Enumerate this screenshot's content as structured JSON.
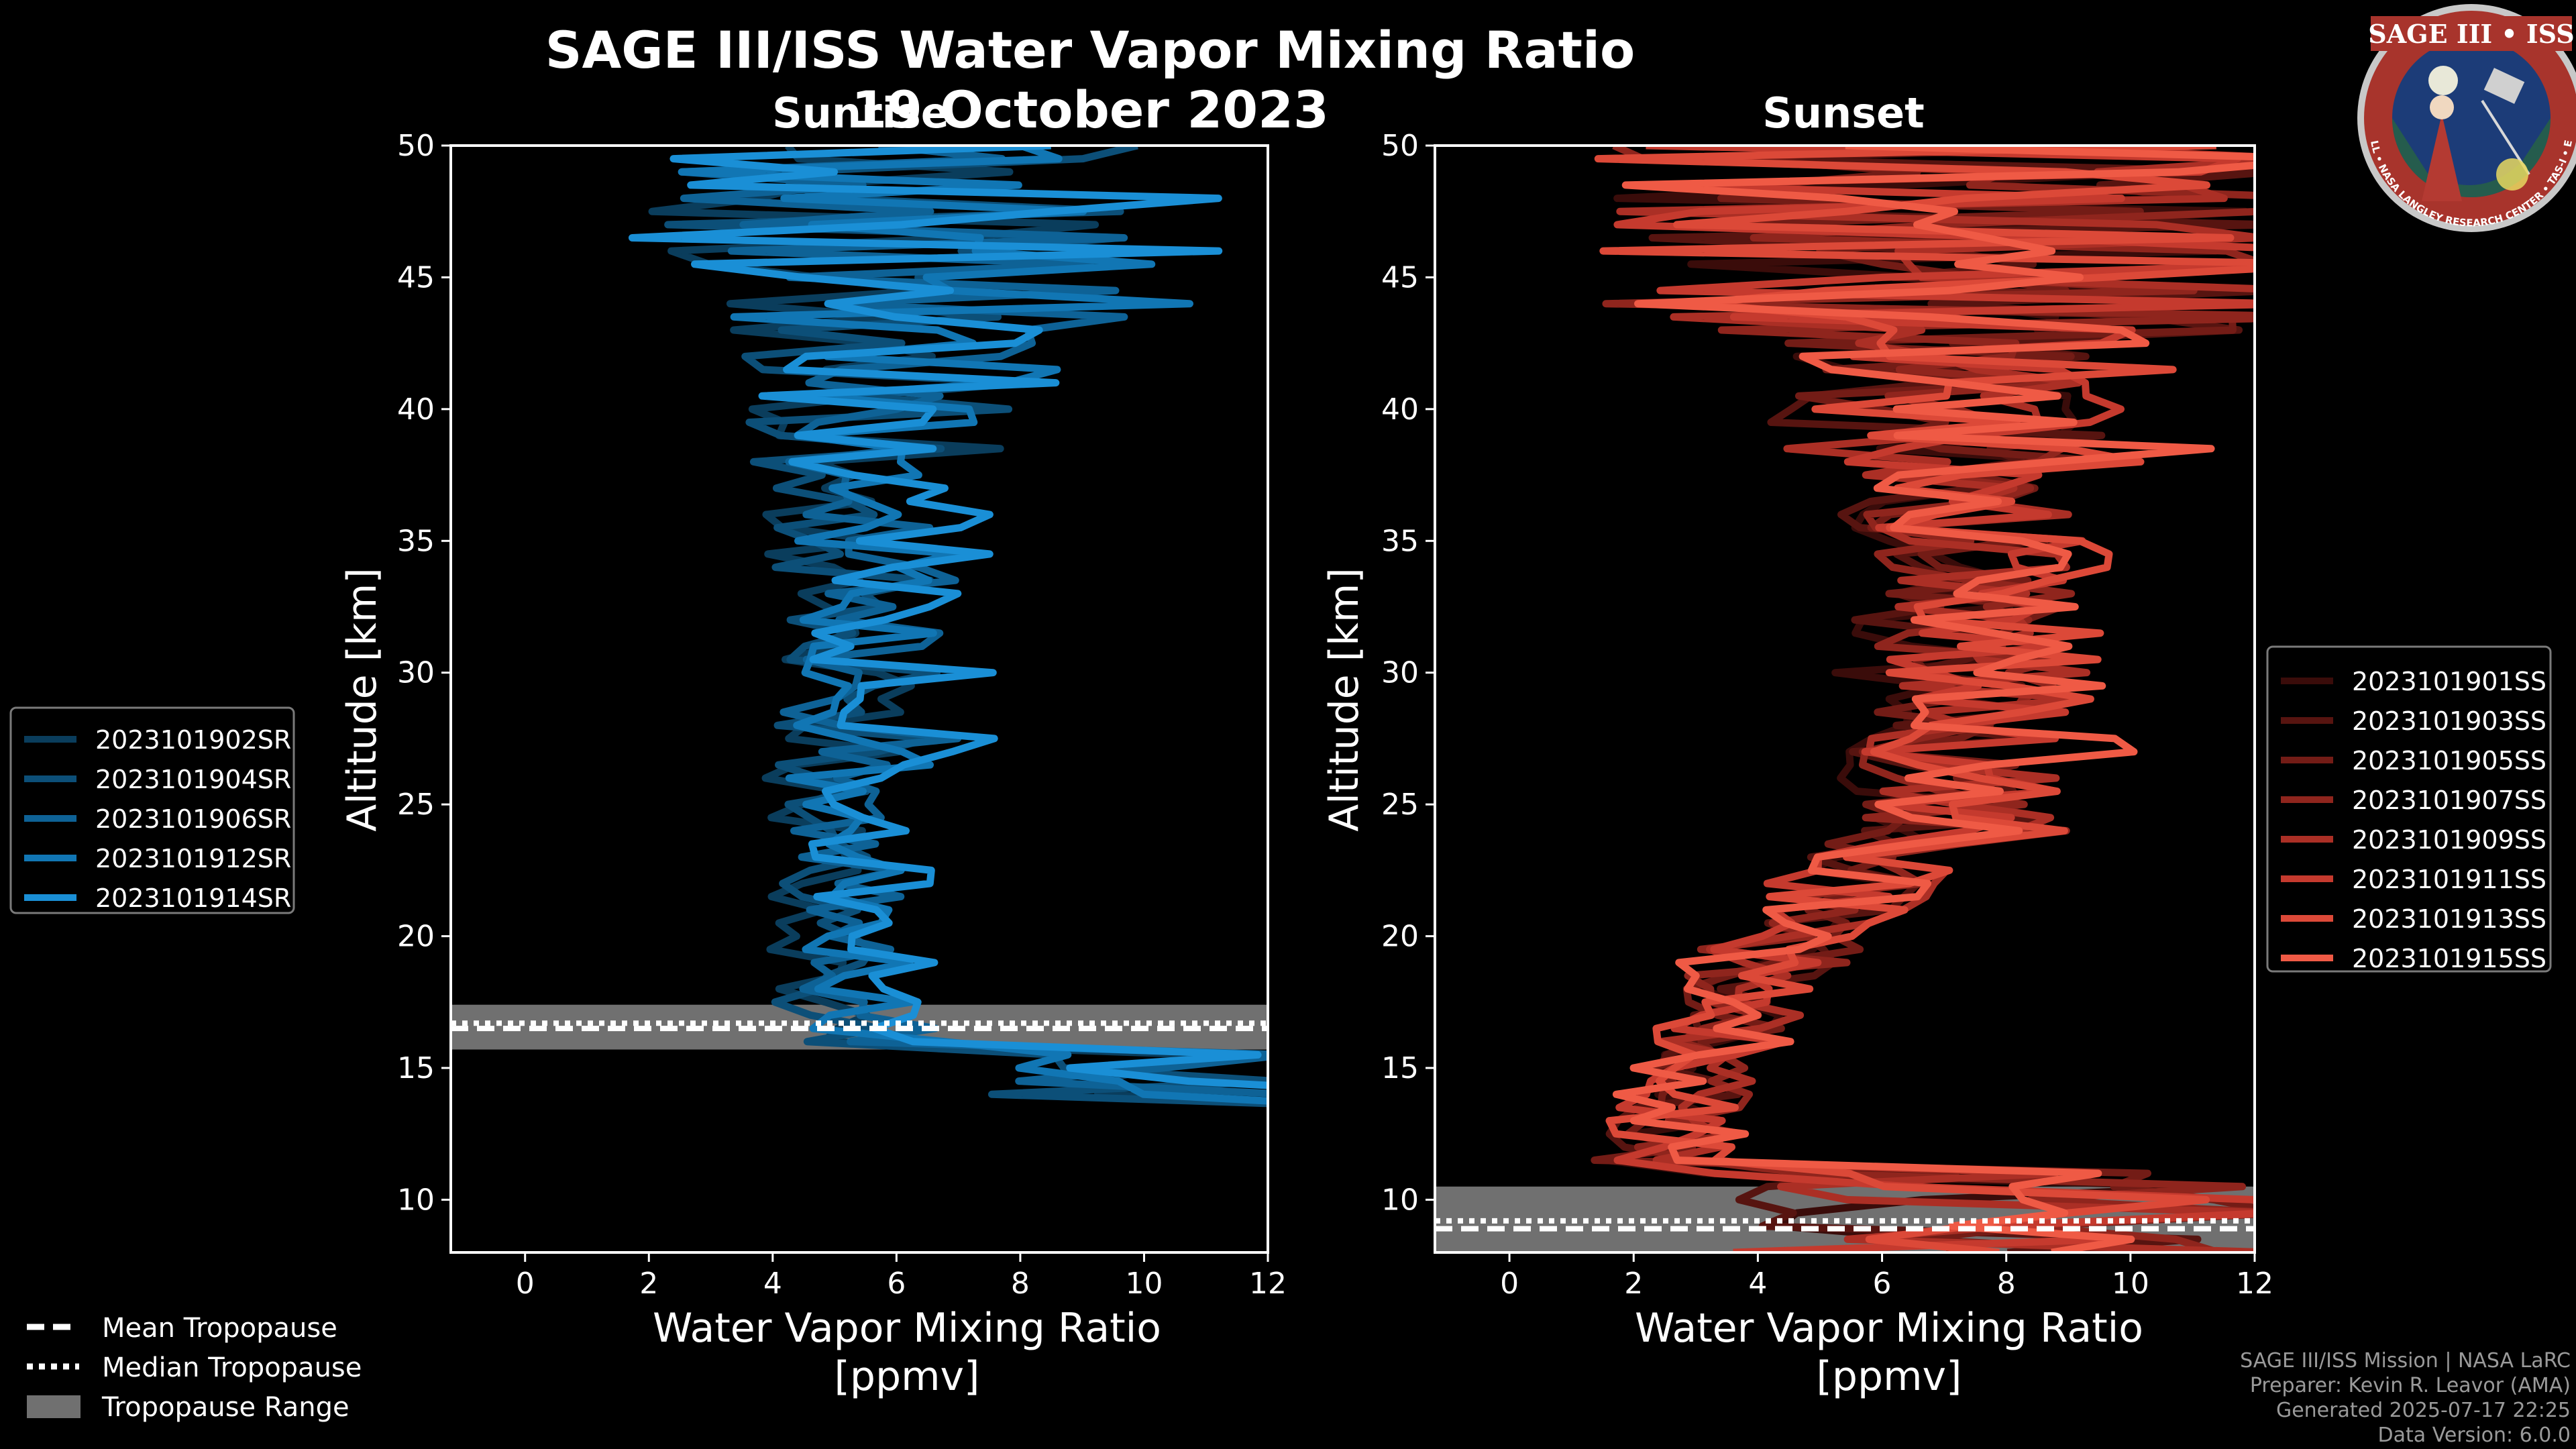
{
  "figure": {
    "title": "SAGE III/ISS Water Vapor Mixing Ratio",
    "date": "19 October 2023",
    "footer": [
      "SAGE III/ISS Mission | NASA LaRC",
      "Preparer: Kevin R. Leavor (AMA)",
      "Generated 2025-07-17 22:25",
      "Data Version: 6.0.0"
    ],
    "logo": {
      "title": "SAGE III • ISS",
      "ring_text": "BALL • NASA LANGLEY RESEARCH CENTER • TAS-I • ESA"
    }
  },
  "tropopause_legend": {
    "mean": "Mean Tropopause",
    "median": "Median Tropopause",
    "range": "Tropopause Range"
  },
  "colors": {
    "sunrise": [
      "#0a3d5c",
      "#0c4f78",
      "#0e6296",
      "#1176b4",
      "#1a8fd6"
    ],
    "sunset": [
      "#3a0c0a",
      "#571410",
      "#731c16",
      "#8f251d",
      "#ab2f25",
      "#c53a2e",
      "#dc4938",
      "#ef5a45"
    ],
    "trop_range": "#707070"
  },
  "chart_data": [
    {
      "type": "line",
      "panel_title": "Sunrise",
      "xlabel": "Water Vapor Mixing Ratio\n[ppmv]",
      "ylabel": "Altitude [km]",
      "xlim": [
        -1.2,
        12
      ],
      "ylim": [
        8,
        50
      ],
      "xticks": [
        0,
        2,
        4,
        6,
        8,
        10,
        12
      ],
      "yticks": [
        10,
        15,
        20,
        25,
        30,
        35,
        40,
        45,
        50
      ],
      "tropopause": {
        "mean": 16.5,
        "median": 16.7,
        "range": [
          15.7,
          17.4
        ]
      },
      "series": [
        {
          "name": "2023101902SR",
          "seed": 11,
          "center": 5.1,
          "width": 1.0
        },
        {
          "name": "2023101904SR",
          "seed": 23,
          "center": 5.3,
          "width": 1.1
        },
        {
          "name": "2023101906SR",
          "seed": 37,
          "center": 5.6,
          "width": 1.1
        },
        {
          "name": "2023101912SR",
          "seed": 53,
          "center": 5.8,
          "width": 1.2
        },
        {
          "name": "2023101914SR",
          "seed": 71,
          "center": 6.0,
          "width": 1.3
        }
      ]
    },
    {
      "type": "line",
      "panel_title": "Sunset",
      "xlabel": "Water Vapor Mixing Ratio\n[ppmv]",
      "ylabel": "Altitude [km]",
      "xlim": [
        -1.2,
        12
      ],
      "ylim": [
        8,
        50
      ],
      "xticks": [
        0,
        2,
        4,
        6,
        8,
        10,
        12
      ],
      "yticks": [
        10,
        15,
        20,
        25,
        30,
        35,
        40,
        45,
        50
      ],
      "tropopause": {
        "mean": 8.9,
        "median": 9.2,
        "range": [
          8,
          10.5
        ]
      },
      "series": [
        {
          "name": "2023101901SS",
          "seed": 101,
          "center": 6.8,
          "width": 1.2
        },
        {
          "name": "2023101903SS",
          "seed": 113,
          "center": 7.0,
          "width": 1.3
        },
        {
          "name": "2023101905SS",
          "seed": 127,
          "center": 7.2,
          "width": 1.3
        },
        {
          "name": "2023101907SS",
          "seed": 139,
          "center": 7.4,
          "width": 1.4
        },
        {
          "name": "2023101909SS",
          "seed": 151,
          "center": 7.5,
          "width": 1.4
        },
        {
          "name": "2023101911SS",
          "seed": 163,
          "center": 7.6,
          "width": 1.5
        },
        {
          "name": "2023101913SS",
          "seed": 179,
          "center": 7.8,
          "width": 1.5
        },
        {
          "name": "2023101915SS",
          "seed": 191,
          "center": 8.0,
          "width": 1.6
        }
      ]
    }
  ]
}
